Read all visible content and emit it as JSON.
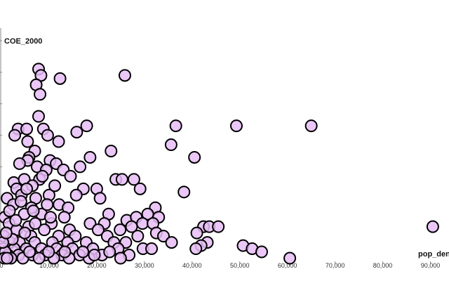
{
  "chart_data": {
    "type": "scatter",
    "title": "",
    "xlabel": "pop_den",
    "ylabel": "COE_2000",
    "xlim": [
      0,
      92000
    ],
    "ylim": [
      0,
      100
    ],
    "x_ticks": [
      0,
      10000,
      20000,
      30000,
      40000,
      50000,
      60000,
      70000,
      80000,
      90000
    ],
    "x_tick_labels": [
      "0",
      "10,000",
      "20,000",
      "30,000",
      "40,000",
      "50,000",
      "60,000",
      "70,000",
      "80,000",
      "90,000"
    ],
    "y_ticks": [
      0,
      10,
      20,
      30,
      40,
      50,
      60,
      70
    ],
    "y_tick_labels": [
      "",
      "",
      "",
      "",
      "",
      "",
      "",
      ""
    ],
    "point_color": "#e6bdf5",
    "stroke_color": "#000000",
    "grid": false,
    "series": [
      {
        "values": [
          [
            15400,
            93
          ],
          [
            11000,
            88
          ],
          [
            7800,
            61
          ],
          [
            8300,
            59
          ],
          [
            12300,
            58
          ],
          [
            25900,
            59
          ],
          [
            7300,
            56
          ],
          [
            8100,
            53
          ],
          [
            7800,
            46
          ],
          [
            3500,
            42
          ],
          [
            5300,
            42
          ],
          [
            8800,
            42
          ],
          [
            17900,
            43
          ],
          [
            36600,
            43
          ],
          [
            49300,
            43
          ],
          [
            65000,
            43
          ],
          [
            2800,
            40
          ],
          [
            9700,
            40
          ],
          [
            15800,
            41
          ],
          [
            12000,
            38
          ],
          [
            35600,
            37
          ],
          [
            7000,
            35
          ],
          [
            23000,
            35
          ],
          [
            5800,
            33
          ],
          [
            18600,
            33
          ],
          [
            5500,
            32
          ],
          [
            10200,
            32
          ],
          [
            40500,
            33
          ],
          [
            11500,
            31
          ],
          [
            16500,
            30
          ],
          [
            7500,
            30
          ],
          [
            13000,
            29
          ],
          [
            9400,
            29
          ],
          [
            2600,
            25
          ],
          [
            4800,
            26
          ],
          [
            8000,
            26
          ],
          [
            14500,
            27
          ],
          [
            24000,
            26
          ],
          [
            25300,
            26
          ],
          [
            27800,
            26
          ],
          [
            3200,
            23
          ],
          [
            6500,
            24
          ],
          [
            17200,
            23
          ],
          [
            20000,
            23
          ],
          [
            29100,
            23
          ],
          [
            38300,
            22
          ],
          [
            1200,
            20
          ],
          [
            4200,
            21
          ],
          [
            7200,
            20
          ],
          [
            10000,
            21
          ],
          [
            15700,
            21
          ],
          [
            20700,
            20
          ],
          [
            2500,
            18
          ],
          [
            6300,
            17
          ],
          [
            12100,
            18
          ],
          [
            14000,
            17
          ],
          [
            32300,
            17
          ],
          [
            22500,
            15
          ],
          [
            700,
            14
          ],
          [
            4800,
            15
          ],
          [
            8400,
            15
          ],
          [
            13200,
            14
          ],
          [
            26300,
            13
          ],
          [
            28300,
            14
          ],
          [
            30700,
            15
          ],
          [
            33000,
            14
          ],
          [
            1600,
            12
          ],
          [
            5700,
            11
          ],
          [
            10500,
            12
          ],
          [
            18600,
            12
          ],
          [
            21600,
            12
          ],
          [
            29600,
            12
          ],
          [
            31800,
            12
          ],
          [
            3200,
            10
          ],
          [
            9000,
            10
          ],
          [
            14300,
            10
          ],
          [
            20300,
            10
          ],
          [
            24900,
            10
          ],
          [
            27300,
            11
          ],
          [
            42400,
            11
          ],
          [
            43600,
            11
          ],
          [
            45500,
            11
          ],
          [
            32500,
            9
          ],
          [
            41000,
            9
          ],
          [
            500,
            8
          ],
          [
            6200,
            8
          ],
          [
            12000,
            8
          ],
          [
            15500,
            8
          ],
          [
            22200,
            8
          ],
          [
            28600,
            8
          ],
          [
            34000,
            8
          ],
          [
            1800,
            6
          ],
          [
            3800,
            6
          ],
          [
            7000,
            6
          ],
          [
            10700,
            6
          ],
          [
            13900,
            6
          ],
          [
            17800,
            6
          ],
          [
            23600,
            6
          ],
          [
            26100,
            6
          ],
          [
            35700,
            6
          ],
          [
            43200,
            6
          ],
          [
            41900,
            5
          ],
          [
            50700,
            5
          ],
          [
            400,
            4
          ],
          [
            2700,
            4
          ],
          [
            5200,
            4
          ],
          [
            8400,
            4
          ],
          [
            11600,
            4
          ],
          [
            14900,
            4
          ],
          [
            19200,
            4
          ],
          [
            24500,
            4
          ],
          [
            29700,
            4
          ],
          [
            31500,
            4
          ],
          [
            40800,
            4
          ],
          [
            52600,
            4
          ],
          [
            54600,
            3
          ],
          [
            1400,
            2
          ],
          [
            3600,
            2
          ],
          [
            6500,
            2
          ],
          [
            9200,
            2
          ],
          [
            12700,
            2
          ],
          [
            16400,
            2
          ],
          [
            21100,
            2
          ],
          [
            26800,
            2
          ],
          [
            60500,
            1
          ],
          [
            90500,
            11
          ],
          [
            2000,
            1
          ],
          [
            4500,
            1
          ],
          [
            7900,
            1
          ],
          [
            11000,
            1
          ],
          [
            14200,
            1
          ],
          [
            18400,
            1
          ],
          [
            800,
            3
          ],
          [
            5900,
            3
          ],
          [
            9900,
            3
          ],
          [
            13300,
            3
          ],
          [
            17100,
            3
          ],
          [
            22700,
            3
          ],
          [
            2300,
            7
          ],
          [
            4900,
            9
          ],
          [
            7100,
            12
          ],
          [
            10300,
            14
          ],
          [
            300,
            6
          ],
          [
            1000,
            9
          ],
          [
            3000,
            13
          ],
          [
            6700,
            16
          ],
          [
            9600,
            18
          ],
          [
            11200,
            24
          ],
          [
            4100,
            19
          ],
          [
            1700,
            16
          ],
          [
            5300,
            23
          ],
          [
            8600,
            27
          ],
          [
            5500,
            38
          ],
          [
            3800,
            31
          ],
          [
            600,
            1
          ],
          [
            1200,
            1
          ],
          [
            19500,
            2
          ],
          [
            25000,
            1
          ]
        ]
      }
    ]
  }
}
